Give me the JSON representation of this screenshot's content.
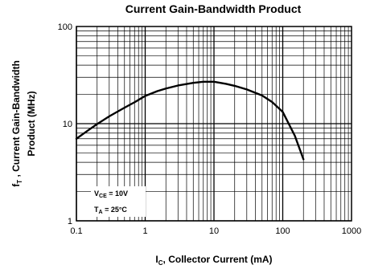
{
  "chart_data": {
    "type": "line",
    "title": "Current Gain-Bandwidth Product",
    "xlabel": {
      "main": "I",
      "sub": "C",
      "rest": ", Collector Current (mA)"
    },
    "ylabel": {
      "main": "f",
      "sub": "T",
      "rest": " , Current Gain-Bandwidth",
      "line2": "Product (MHz)"
    },
    "x_scale": "log",
    "y_scale": "log",
    "xlim": [
      0.1,
      1000
    ],
    "ylim": [
      1,
      100
    ],
    "grid": true,
    "x_ticks": [
      {
        "value": 0.1,
        "label": "0.1"
      },
      {
        "value": 1,
        "label": "1"
      },
      {
        "value": 10,
        "label": "10"
      },
      {
        "value": 100,
        "label": "100"
      },
      {
        "value": 1000,
        "label": "1000"
      }
    ],
    "y_ticks": [
      {
        "value": 1,
        "label": "1"
      },
      {
        "value": 10,
        "label": "10"
      },
      {
        "value": 100,
        "label": "100"
      }
    ],
    "series": [
      {
        "x": [
          0.1,
          0.15,
          0.2,
          0.3,
          0.5,
          0.7,
          1,
          1.5,
          2,
          3,
          5,
          7,
          10,
          15,
          20,
          30,
          50,
          70,
          100,
          150,
          200
        ],
        "y": [
          7,
          8.6,
          9.9,
          11.9,
          14.6,
          16.6,
          19.3,
          21.6,
          23,
          24.7,
          26.3,
          27,
          27,
          25.7,
          24.5,
          22.5,
          19.5,
          16.7,
          13.2,
          7.5,
          4.3
        ]
      }
    ],
    "annotations": [
      {
        "main": "V",
        "sub": "CE",
        "rest": " = 10V"
      },
      {
        "main": "T",
        "sub": "A",
        "rest": " = 25°C"
      }
    ]
  }
}
